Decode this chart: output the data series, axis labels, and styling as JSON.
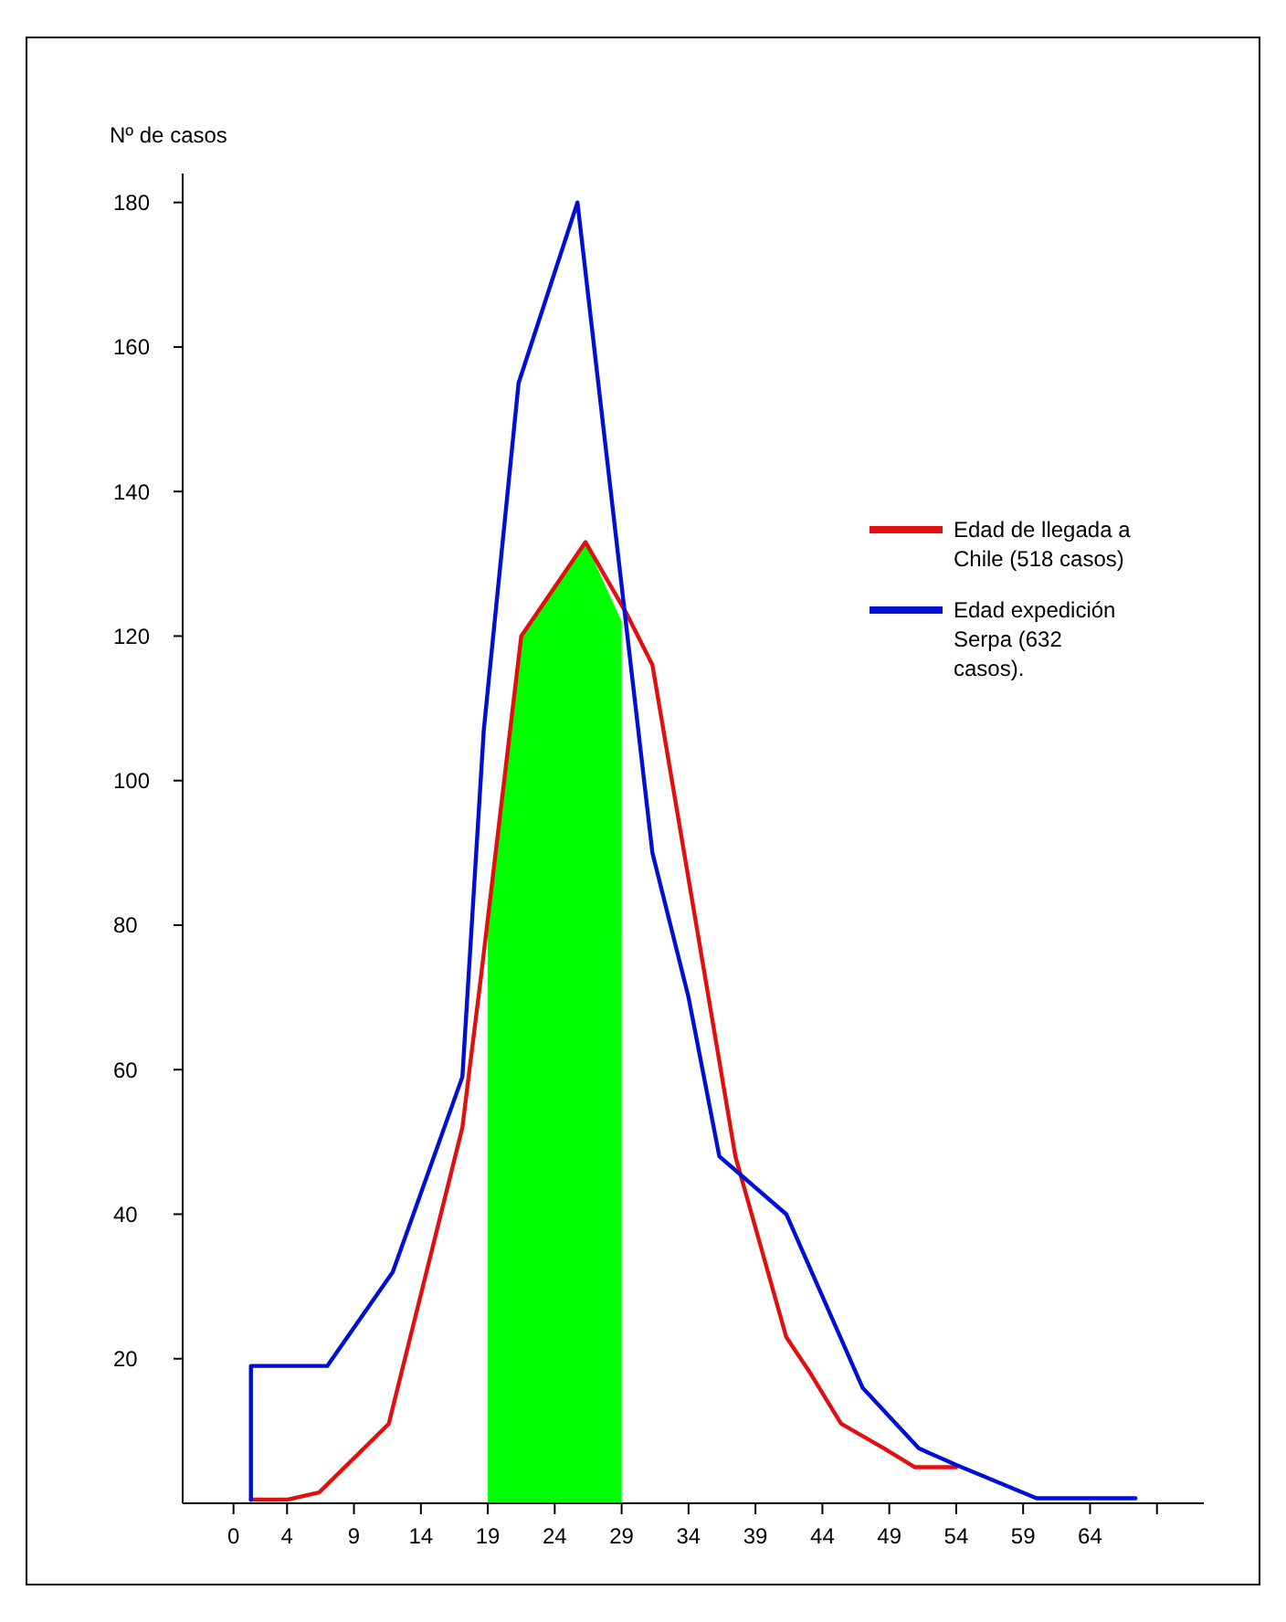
{
  "chart_data": {
    "type": "line",
    "ylabel": "Nº de casos",
    "xlim": [
      -3.8,
      72.5
    ],
    "xticks": [
      0,
      4,
      9,
      14,
      19,
      24,
      29,
      34,
      39,
      44,
      49,
      54,
      59,
      64,
      {
        "value": 69,
        "label": null
      }
    ],
    "ylim": [
      0,
      184
    ],
    "yticks": [
      20,
      40,
      60,
      80,
      100,
      120,
      140,
      160,
      180
    ],
    "legend": "right",
    "grid": false,
    "series": [
      {
        "type": "area",
        "color": "#00ff00",
        "x": [
          19,
          21.5,
          26.3,
          29
        ],
        "values": [
          79,
          120,
          133,
          122
        ]
      },
      {
        "name": "Edad de llegada a Chile (518 casos)",
        "color": "#e01010",
        "x": [
          1.3,
          4,
          6.4,
          11.6,
          17.1,
          18.5,
          21.5,
          26.3,
          29.4,
          31.3,
          37.5,
          41.3,
          43.1,
          45.4,
          48.6,
          50.9,
          54
        ],
        "values": [
          0.5,
          0.5,
          1.5,
          11,
          52,
          73,
          120,
          133,
          123,
          116,
          48,
          23,
          18,
          11,
          7.6,
          5,
          5
        ]
      },
      {
        "name": "Edad expedición Serpa (632 casos).",
        "color": "#0010d0",
        "x": [
          1.3,
          1.3,
          7,
          11.9,
          17.1,
          18.7,
          21.3,
          25.7,
          31.3,
          34,
          36.3,
          41.3,
          47,
          51.2,
          54,
          60,
          67.4
        ],
        "values": [
          0.5,
          19,
          19,
          32,
          59,
          107,
          155,
          180,
          90,
          70,
          48,
          40,
          16,
          7.6,
          5.3,
          0.7,
          0.7
        ]
      }
    ]
  }
}
